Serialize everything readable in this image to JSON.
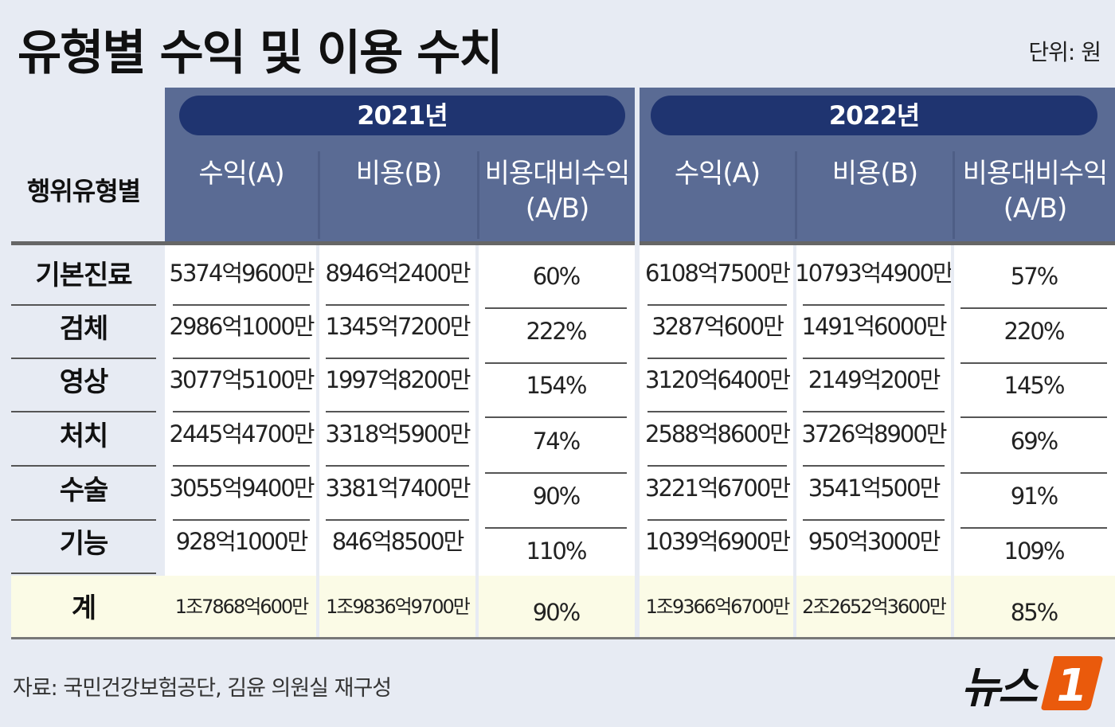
{
  "title": "유형별 수익 및 이용 수치",
  "unit": "단위: 원",
  "row_header": "행위유형별",
  "years": [
    "2021년",
    "2022년"
  ],
  "columns": {
    "revenue": "수익(A)",
    "cost": "비용(B)",
    "ratio_line1": "비용대비수익",
    "ratio_line2": "(A/B)"
  },
  "source": "자료: 국민건강보험공단, 김윤 의원실 재구성",
  "logo": {
    "text": "뉴스",
    "mark": "1",
    "accent_color": "#ea5a0c"
  },
  "colors": {
    "header": "#5a6b94",
    "pill": "#1f3470",
    "background": "#e7ebf3",
    "total_row": "#fbfbe6"
  },
  "chart_data": {
    "type": "table",
    "rows": [
      {
        "label": "기본진료",
        "y2021": [
          "5374억9600만",
          "8946억2400만",
          "60%"
        ],
        "y2022": [
          "6108억7500만",
          "10793억4900만",
          "57%"
        ]
      },
      {
        "label": "검체",
        "y2021": [
          "2986억1000만",
          "1345억7200만",
          "222%"
        ],
        "y2022": [
          "3287억600만",
          "1491억6000만",
          "220%"
        ]
      },
      {
        "label": "영상",
        "y2021": [
          "3077억5100만",
          "1997억8200만",
          "154%"
        ],
        "y2022": [
          "3120억6400만",
          "2149억200만",
          "145%"
        ]
      },
      {
        "label": "처치",
        "y2021": [
          "2445억4700만",
          "3318억5900만",
          "74%"
        ],
        "y2022": [
          "2588억8600만",
          "3726억8900만",
          "69%"
        ]
      },
      {
        "label": "수술",
        "y2021": [
          "3055억9400만",
          "3381억7400만",
          "90%"
        ],
        "y2022": [
          "3221억6700만",
          "3541억500만",
          "91%"
        ]
      },
      {
        "label": "기능",
        "y2021": [
          "928억1000만",
          "846억8500만",
          "110%"
        ],
        "y2022": [
          "1039억6900만",
          "950억3000만",
          "109%"
        ]
      }
    ],
    "total": {
      "label": "계",
      "y2021": [
        "1조7868억600만",
        "1조9836억9700만",
        "90%"
      ],
      "y2022": [
        "1조9366억6700만",
        "2조2652억3600만",
        "85%"
      ]
    }
  }
}
